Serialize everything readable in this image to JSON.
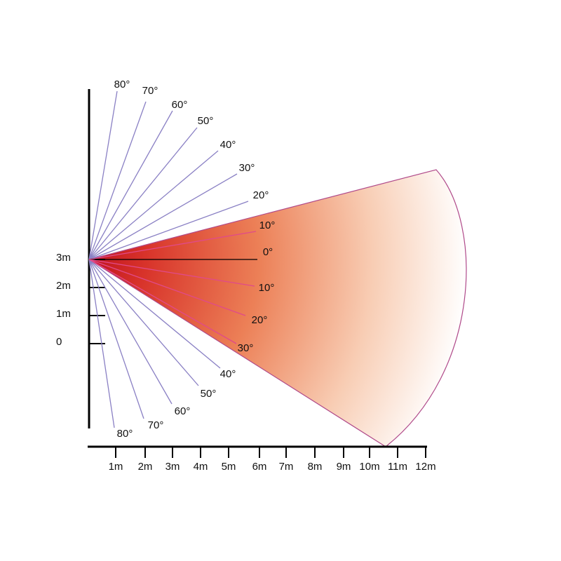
{
  "vertical_axis": {
    "labels": [
      "3m",
      "2m",
      "1m",
      "0"
    ]
  },
  "horizontal_axis": {
    "labels": [
      "1m",
      "2m",
      "3m",
      "4m",
      "5m",
      "6m",
      "7m",
      "8m",
      "9m",
      "10m",
      "11m",
      "12m"
    ]
  },
  "angle_labels": {
    "outer_upper": [
      "80°",
      "70°",
      "60°",
      "50°",
      "40°",
      "30°",
      "20°"
    ],
    "outer_lower": [
      "40°",
      "50°",
      "60°",
      "70°",
      "80°"
    ],
    "inner": [
      "10°",
      "0°",
      "10°",
      "20°",
      "30°"
    ]
  }
}
